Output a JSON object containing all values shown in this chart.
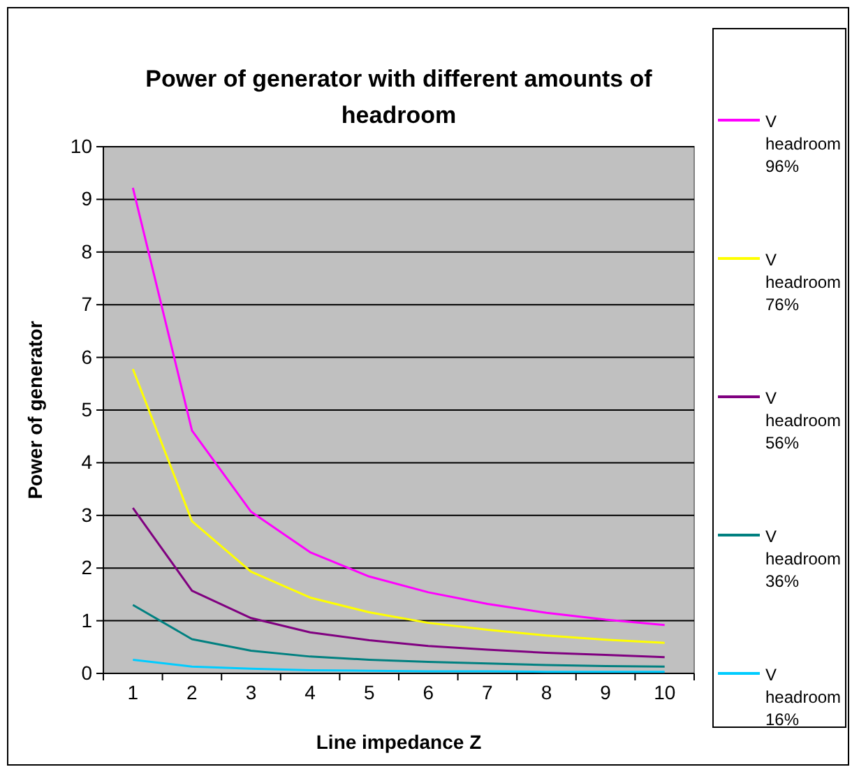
{
  "chart_data": {
    "type": "line",
    "title": "Power of generator with different amounts of headroom",
    "xlabel": "Line impedance Z",
    "ylabel": "Power of generator",
    "categories": [
      "1",
      "2",
      "3",
      "4",
      "5",
      "6",
      "7",
      "8",
      "9",
      "10"
    ],
    "series": [
      {
        "name": "V headroom 96%",
        "color": "#ff00ff",
        "values": [
          9.22,
          4.61,
          3.07,
          2.3,
          1.84,
          1.54,
          1.32,
          1.15,
          1.02,
          0.92
        ]
      },
      {
        "name": "V headroom 76%",
        "color": "#ffff00",
        "values": [
          5.78,
          2.89,
          1.93,
          1.44,
          1.16,
          0.96,
          0.83,
          0.72,
          0.64,
          0.58
        ]
      },
      {
        "name": "V headroom 56%",
        "color": "#800080",
        "values": [
          3.14,
          1.57,
          1.05,
          0.78,
          0.63,
          0.52,
          0.45,
          0.39,
          0.35,
          0.31
        ]
      },
      {
        "name": "V headroom 36%",
        "color": "#008080",
        "values": [
          1.3,
          0.65,
          0.43,
          0.32,
          0.26,
          0.22,
          0.19,
          0.16,
          0.14,
          0.13
        ]
      },
      {
        "name": "V headroom 16%",
        "color": "#00ccff",
        "values": [
          0.26,
          0.13,
          0.09,
          0.06,
          0.05,
          0.04,
          0.04,
          0.03,
          0.03,
          0.03
        ]
      }
    ],
    "ylim": [
      0,
      10
    ],
    "yticks": [
      0,
      1,
      2,
      3,
      4,
      5,
      6,
      7,
      8,
      9,
      10
    ],
    "grid": "y",
    "legend": "right",
    "marker": "none",
    "line_style": "solid"
  }
}
